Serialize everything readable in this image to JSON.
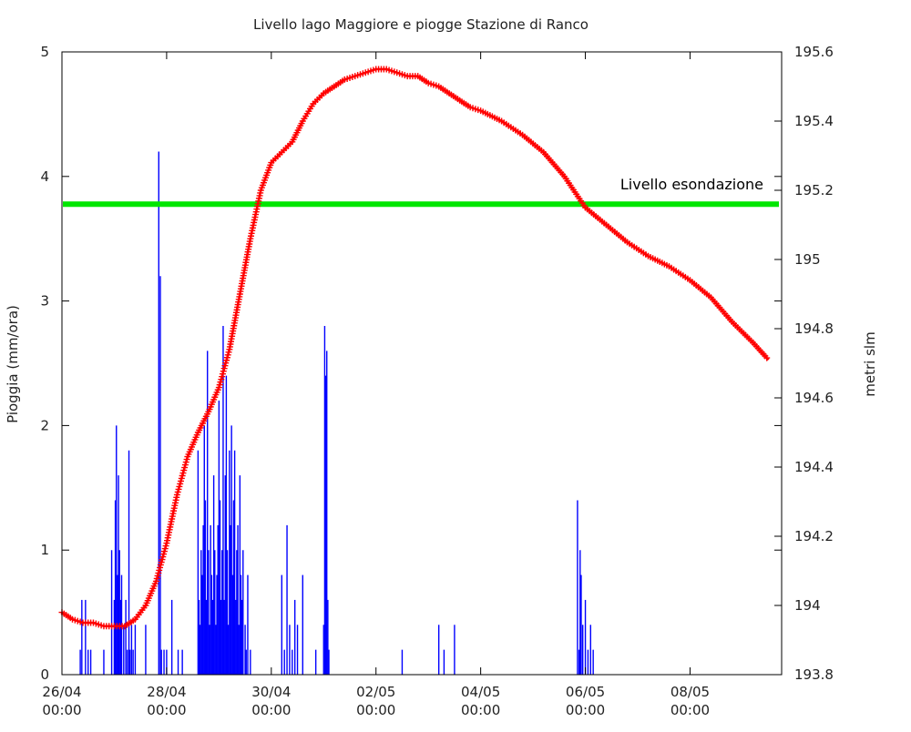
{
  "chart_data": {
    "type": "line",
    "title": "Livello lago Maggiore e piogge Stazione di Ranco",
    "ylabel": "Pioggia (mm/ora)",
    "y2label": "metri slm",
    "xlabel": "",
    "grid": false,
    "legend": "none",
    "x_range": [
      "26/04 00:00",
      "09/05 18:00"
    ],
    "ylim": [
      0,
      5
    ],
    "y2lim": [
      193.8,
      195.6
    ],
    "x_ticks": [
      {
        "date": "26/04",
        "time": "00:00",
        "day": 0
      },
      {
        "date": "28/04",
        "time": "00:00",
        "day": 2
      },
      {
        "date": "30/04",
        "time": "00:00",
        "day": 4
      },
      {
        "date": "02/05",
        "time": "00:00",
        "day": 6
      },
      {
        "date": "04/05",
        "time": "00:00",
        "day": 8
      },
      {
        "date": "06/05",
        "time": "00:00",
        "day": 10
      },
      {
        "date": "08/05",
        "time": "00:00",
        "day": 12
      }
    ],
    "y_ticks": [
      "0",
      "1",
      "2",
      "3",
      "4",
      "5"
    ],
    "y2_ticks": [
      "193.8",
      "194",
      "194.2",
      "194.4",
      "194.6",
      "194.8",
      "195",
      "195.2",
      "195.4",
      "195.6"
    ],
    "threshold": {
      "label": "Livello esondazione",
      "value": 195.16,
      "color": "#00e600"
    },
    "series": [
      {
        "axis": "y2",
        "color": "#ff0000",
        "marker": "plus",
        "x": [
          0,
          0.2,
          0.4,
          0.6,
          0.8,
          1.0,
          1.2,
          1.4,
          1.6,
          1.8,
          2.0,
          2.2,
          2.4,
          2.6,
          2.8,
          3.0,
          3.2,
          3.4,
          3.6,
          3.8,
          4.0,
          4.2,
          4.4,
          4.6,
          4.8,
          5.0,
          5.2,
          5.4,
          5.6,
          5.8,
          6.0,
          6.2,
          6.4,
          6.6,
          6.8,
          7.0,
          7.2,
          7.4,
          7.6,
          7.8,
          8.0,
          8.4,
          8.8,
          9.2,
          9.6,
          10.0,
          10.4,
          10.8,
          11.2,
          11.6,
          12.0,
          12.4,
          12.8,
          13.2,
          13.5
        ],
        "y": [
          193.98,
          193.96,
          193.95,
          193.95,
          193.94,
          193.94,
          193.94,
          193.96,
          194.0,
          194.07,
          194.18,
          194.32,
          194.43,
          194.5,
          194.56,
          194.63,
          194.74,
          194.9,
          195.06,
          195.2,
          195.28,
          195.31,
          195.34,
          195.4,
          195.45,
          195.48,
          195.5,
          195.52,
          195.53,
          195.54,
          195.55,
          195.55,
          195.54,
          195.53,
          195.53,
          195.51,
          195.5,
          195.48,
          195.46,
          195.44,
          195.43,
          195.4,
          195.36,
          195.31,
          195.24,
          195.15,
          195.1,
          195.05,
          195.01,
          194.98,
          194.94,
          194.89,
          194.82,
          194.76,
          194.71
        ]
      },
      {
        "axis": "y1",
        "type": "impulse",
        "color": "#0000ff",
        "x": [
          0.35,
          0.38,
          0.45,
          0.5,
          0.55,
          0.8,
          0.95,
          1.0,
          1.02,
          1.04,
          1.06,
          1.08,
          1.1,
          1.12,
          1.14,
          1.18,
          1.22,
          1.25,
          1.28,
          1.3,
          1.33,
          1.36,
          1.4,
          1.6,
          1.85,
          1.88,
          1.9,
          1.95,
          2.0,
          2.1,
          2.22,
          2.3,
          2.6,
          2.62,
          2.64,
          2.66,
          2.68,
          2.7,
          2.72,
          2.74,
          2.76,
          2.78,
          2.8,
          2.82,
          2.84,
          2.86,
          2.88,
          2.9,
          2.92,
          2.94,
          2.96,
          2.98,
          3.0,
          3.02,
          3.04,
          3.06,
          3.08,
          3.1,
          3.12,
          3.14,
          3.16,
          3.18,
          3.2,
          3.22,
          3.24,
          3.26,
          3.28,
          3.3,
          3.32,
          3.34,
          3.36,
          3.38,
          3.4,
          3.42,
          3.44,
          3.46,
          3.5,
          3.52,
          3.55,
          3.6,
          4.2,
          4.25,
          4.3,
          4.35,
          4.4,
          4.45,
          4.5,
          4.6,
          4.85,
          5.0,
          5.02,
          5.04,
          5.06,
          5.08,
          5.1,
          6.5,
          7.2,
          7.3,
          7.5,
          9.85,
          9.88,
          9.9,
          9.92,
          9.95,
          10.0,
          10.05,
          10.1,
          10.15
        ],
        "y": [
          0.2,
          0.6,
          0.6,
          0.2,
          0.2,
          0.2,
          1.0,
          0.6,
          1.4,
          2.0,
          0.8,
          1.6,
          1.0,
          0.6,
          0.8,
          0.4,
          0.6,
          0.2,
          1.8,
          0.2,
          0.4,
          0.2,
          0.4,
          0.4,
          4.2,
          3.2,
          0.2,
          0.2,
          0.2,
          0.6,
          0.2,
          0.2,
          1.8,
          0.6,
          0.4,
          1.0,
          0.8,
          1.2,
          2.0,
          1.4,
          0.6,
          2.6,
          1.0,
          0.4,
          1.2,
          0.8,
          0.6,
          1.6,
          1.0,
          0.4,
          0.8,
          1.2,
          2.2,
          1.4,
          0.6,
          1.0,
          2.8,
          0.6,
          1.6,
          2.4,
          1.0,
          0.4,
          1.8,
          1.2,
          2.0,
          0.8,
          1.4,
          1.8,
          0.6,
          1.0,
          1.2,
          0.4,
          1.6,
          0.8,
          0.6,
          1.0,
          0.4,
          0.2,
          0.8,
          0.2,
          0.8,
          0.2,
          1.2,
          0.4,
          0.2,
          0.6,
          0.4,
          0.8,
          0.2,
          0.4,
          2.8,
          2.4,
          2.6,
          0.6,
          0.2,
          0.2,
          0.4,
          0.2,
          0.4,
          1.4,
          0.2,
          1.0,
          0.8,
          0.4,
          0.6,
          0.2,
          0.4,
          0.2
        ]
      }
    ]
  }
}
